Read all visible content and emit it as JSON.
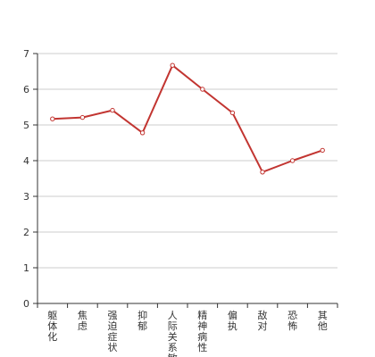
{
  "chart_data": {
    "type": "line",
    "title": "",
    "xlabel": "",
    "ylabel": "",
    "categories": [
      "躯体化",
      "焦虑",
      "强迫症状",
      "抑郁",
      "人际关系敏感",
      "精神病性",
      "偏执",
      "敌对",
      "恐怖",
      "其他"
    ],
    "series": [
      {
        "values": [
          5.17,
          5.21,
          5.41,
          4.78,
          6.67,
          6.0,
          5.34,
          3.68,
          4.0,
          4.29
        ]
      }
    ],
    "ylim": [
      0,
      7
    ],
    "yticks": [
      0,
      1,
      2,
      3,
      4,
      5,
      6,
      7
    ],
    "grid": true,
    "legend": "none",
    "colors": {
      "line": "#c23531",
      "grid": "#cccccc",
      "axis": "#333333"
    }
  }
}
